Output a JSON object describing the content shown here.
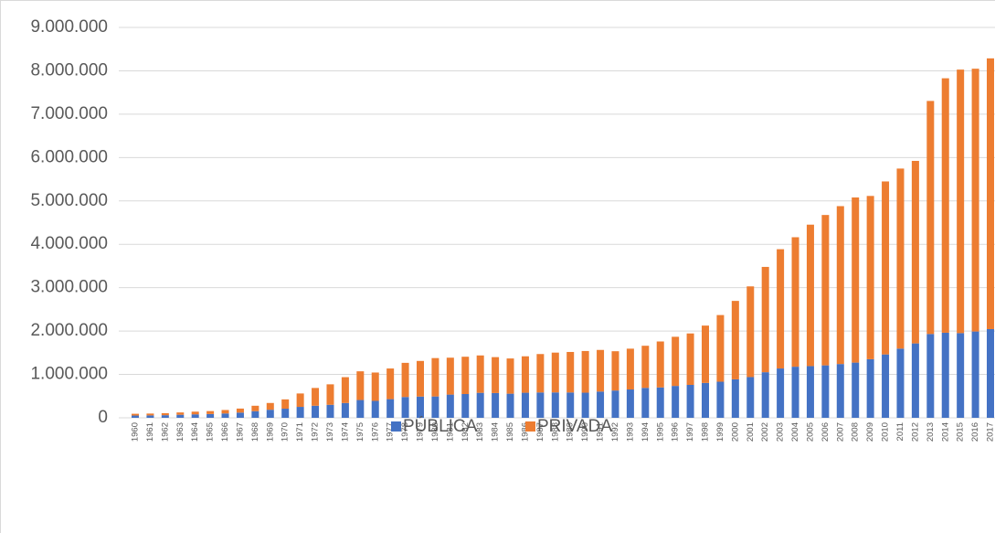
{
  "chart_data": {
    "type": "stacked_bar",
    "categories": [
      "1960",
      "1961",
      "1962",
      "1963",
      "1964",
      "1965",
      "1966",
      "1967",
      "1968",
      "1969",
      "1970",
      "1971",
      "1972",
      "1973",
      "1974",
      "1975",
      "1976",
      "1977",
      "1978",
      "1979",
      "1980",
      "1981",
      "1982",
      "1983",
      "1984",
      "1985",
      "1986",
      "1987",
      "1988",
      "1989",
      "1990",
      "1991",
      "1992",
      "1993",
      "1994",
      "1995",
      "1996",
      "1997",
      "1998",
      "1999",
      "2000",
      "2001",
      "2002",
      "2003",
      "2004",
      "2005",
      "2006",
      "2007",
      "2008",
      "2009",
      "2010",
      "2011",
      "2012",
      "2013",
      "2014",
      "2015",
      "2016",
      "2017"
    ],
    "series": [
      {
        "name": "PÚBLICA",
        "color": "#4472c4",
        "values": [
          52000,
          55000,
          60000,
          70000,
          80000,
          87000,
          100000,
          120000,
          153000,
          186000,
          210000,
          252000,
          278000,
          300000,
          341000,
          410000,
          390000,
          430000,
          480000,
          490000,
          492000,
          535000,
          548000,
          576000,
          571000,
          556000,
          578000,
          584000,
          585000,
          584000,
          579000,
          605000,
          629000,
          653000,
          690000,
          700000,
          735000,
          759000,
          804000,
          832000,
          887000,
          939000,
          1051000,
          1137000,
          1178000,
          1192000,
          1209000,
          1240000,
          1273000,
          1351000,
          1461000,
          1595000,
          1715000,
          1932000,
          1961000,
          1952000,
          1990000,
          2045000
        ]
      },
      {
        "name": "PRIVADA",
        "color": "#ed7d31",
        "values": [
          41000,
          43000,
          47000,
          54000,
          62000,
          68000,
          80000,
          93000,
          125000,
          156000,
          215000,
          309000,
          410000,
          472000,
          596000,
          662000,
          654000,
          707000,
          787000,
          821000,
          885000,
          851000,
          860000,
          862000,
          828000,
          812000,
          840000,
          886000,
          918000,
          934000,
          961000,
          960000,
          906000,
          941000,
          971000,
          1060000,
          1133000,
          1186000,
          1322000,
          1537000,
          1808000,
          2091000,
          2428000,
          2750000,
          2985000,
          3261000,
          3467000,
          3640000,
          3807000,
          3764000,
          3988000,
          4151000,
          4208000,
          5373000,
          5867000,
          6076000,
          6058000,
          6242000
        ]
      }
    ],
    "ylim": [
      0,
      9000000
    ],
    "yticks": [
      0,
      {
        "value": 1000000,
        "label": "1.000.000"
      },
      {
        "value": 2000000,
        "label": "2.000.000"
      },
      {
        "value": 3000000,
        "label": "3.000.000"
      },
      {
        "value": 4000000,
        "label": "4.000.000"
      },
      {
        "value": 5000000,
        "label": "5.000.000"
      },
      {
        "value": 6000000,
        "label": "6.000.000"
      },
      {
        "value": 7000000,
        "label": "7.000.000"
      },
      {
        "value": 8000000,
        "label": "8.000.000"
      },
      {
        "value": 9000000,
        "label": "9.000.000"
      }
    ],
    "grid": true,
    "legend": "bottom"
  }
}
